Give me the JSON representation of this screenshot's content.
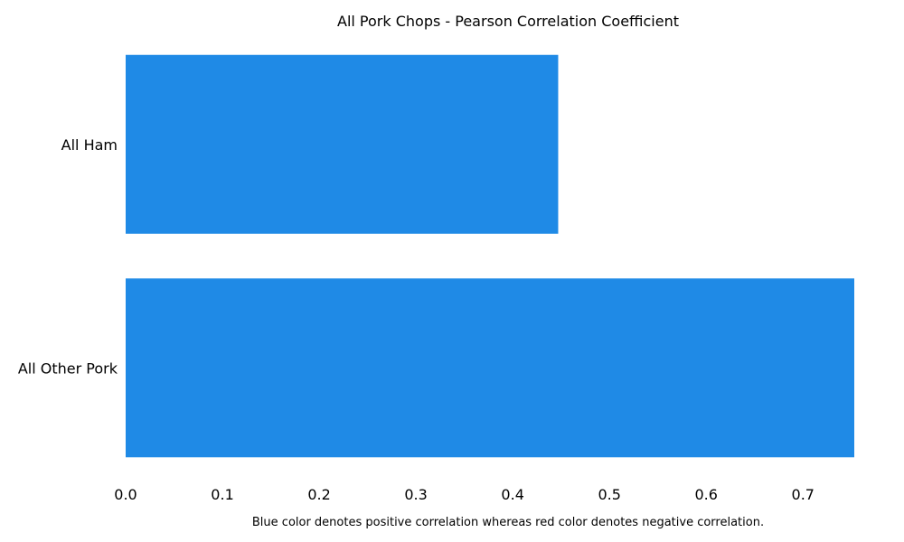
{
  "chart_data": {
    "type": "bar",
    "orientation": "horizontal",
    "title": "All Pork Chops - Pearson Correlation Coefficient",
    "categories": [
      "All Ham",
      "All Other Pork"
    ],
    "values": [
      0.447,
      0.753
    ],
    "xlim": [
      0,
      0.753
    ],
    "xticks": [
      "0.0",
      "0.1",
      "0.2",
      "0.3",
      "0.4",
      "0.5",
      "0.6",
      "0.7"
    ],
    "xtick_values": [
      0,
      0.1,
      0.2,
      0.3,
      0.4,
      0.5,
      0.6,
      0.7
    ],
    "xlabel": "",
    "ylabel": "",
    "grid": false,
    "bar_color": "#1f8ae6",
    "footnote": "Blue color denotes positive correlation whereas red color denotes negative correlation."
  }
}
